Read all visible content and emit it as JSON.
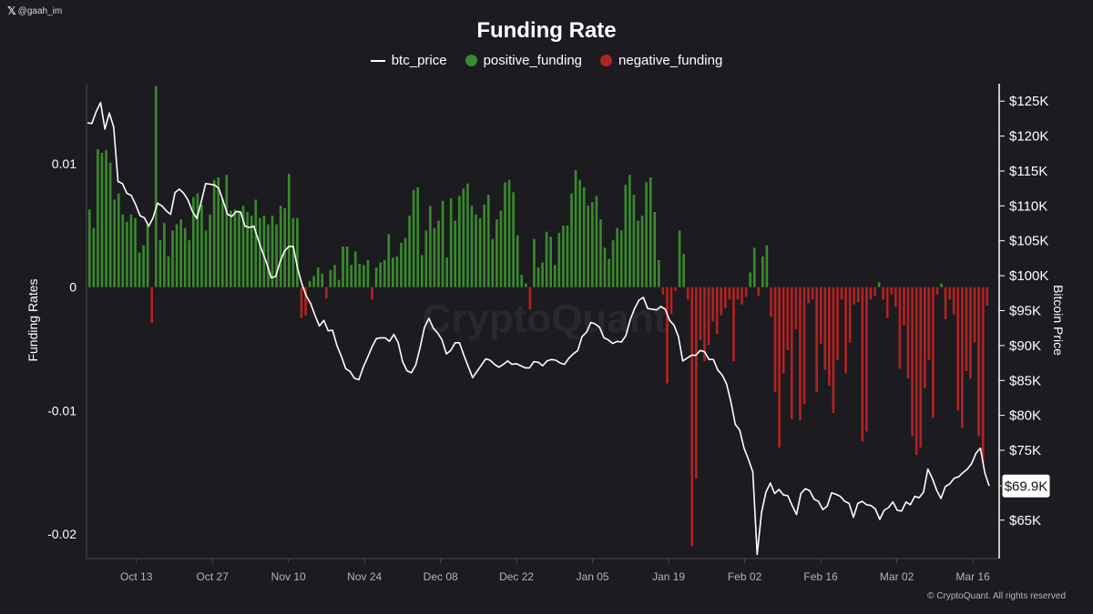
{
  "handle": {
    "logo": "𝕏",
    "text": "@gaah_im"
  },
  "copyright": "© CryptoQuant. All rights reserved",
  "colors": {
    "positive": "#3a8a2c",
    "negative": "#b22222",
    "price": "#ffffff",
    "background": "#1b1b20"
  },
  "chart_data": {
    "type": "bar+line",
    "title": "Funding Rate",
    "legend": [
      "btc_price",
      "positive_funding",
      "negative_funding"
    ],
    "ylabel_left": "Funding Rates",
    "ylabel_right": "Bitcoin Price",
    "watermark": "CryptoQuant",
    "ylim_left": [
      -0.022,
      0.0165
    ],
    "yticks_left": [
      {
        "v": 0.01,
        "label": "0.01"
      },
      {
        "v": 0,
        "label": "0"
      },
      {
        "v": -0.01,
        "label": "-0.01"
      },
      {
        "v": -0.02,
        "label": "-0.02"
      }
    ],
    "ylim_right": [
      59500,
      127500
    ],
    "yticks_right": [
      {
        "v": 125000,
        "label": "$125K"
      },
      {
        "v": 120000,
        "label": "$120K"
      },
      {
        "v": 115000,
        "label": "$115K"
      },
      {
        "v": 110000,
        "label": "$110K"
      },
      {
        "v": 105000,
        "label": "$105K"
      },
      {
        "v": 100000,
        "label": "$100K"
      },
      {
        "v": 95000,
        "label": "$95K"
      },
      {
        "v": 90000,
        "label": "$90K"
      },
      {
        "v": 85000,
        "label": "$85K"
      },
      {
        "v": 80000,
        "label": "$80K"
      },
      {
        "v": 75000,
        "label": "$75K"
      },
      {
        "v": 65000,
        "label": "$65K"
      }
    ],
    "last_price_label": "$69.9K",
    "last_price": 69900,
    "x_range": [
      0,
      166
    ],
    "x_ticks": [
      {
        "i": 9,
        "label": "Oct 13"
      },
      {
        "i": 23,
        "label": "Oct 27"
      },
      {
        "i": 37,
        "label": "Nov 10"
      },
      {
        "i": 51,
        "label": "Nov 24"
      },
      {
        "i": 65,
        "label": "Dec 08"
      },
      {
        "i": 79,
        "label": "Dec 22"
      },
      {
        "i": 93,
        "label": "Jan 05"
      },
      {
        "i": 107,
        "label": "Jan 19"
      },
      {
        "i": 121,
        "label": "Feb 02"
      },
      {
        "i": 135,
        "label": "Feb 16"
      },
      {
        "i": 149,
        "label": "Mar 02"
      },
      {
        "i": 163,
        "label": "Mar 16"
      }
    ],
    "funding": [
      0.0063,
      0.0048,
      0.0112,
      0.0109,
      0.0111,
      0.0101,
      0.0071,
      0.0076,
      0.0059,
      0.0053,
      0.0059,
      0.0056,
      0.0028,
      0.0034,
      0.0051,
      -0.0029,
      0.0163,
      0.0038,
      0.0052,
      0.0025,
      0.0046,
      0.0051,
      0.0055,
      0.0048,
      0.0038,
      0.0073,
      0.0076,
      0.0067,
      0.0046,
      0.0059,
      0.0087,
      0.0089,
      0.0072,
      0.0091,
      0.0062,
      0.0063,
      0.0062,
      0.0066,
      0.0061,
      0.0058,
      0.0071,
      0.0056,
      0.0058,
      0.0051,
      0.0058,
      0.0051,
      0.0066,
      0.0064,
      0.0092,
      0.0056,
      0.0056,
      -0.0025,
      -0.0023,
      0.0005,
      0.0009,
      0.0016,
      0.0011,
      -0.0009,
      0.0014,
      0.0018,
      0.0006,
      0.0033,
      0.0033,
      0.0018,
      0.0029,
      0.0019,
      0.0018,
      0.0022,
      -0.001,
      0.0016,
      0.002,
      0.0022,
      0.0043,
      0.0024,
      0.0025,
      0.0036,
      0.004,
      0.0058,
      0.0079,
      0.0081,
      0.0026,
      0.0046,
      0.0066,
      0.0048,
      0.0054,
      0.007,
      0.0024,
      0.0072,
      0.0054,
      0.0074,
      0.008,
      0.0084,
      0.0066,
      0.0059,
      0.0056,
      0.0067,
      0.0075,
      0.0039,
      0.0055,
      0.0062,
      0.0085,
      0.0087,
      0.0077,
      0.0042,
      0.001,
      0.0003,
      -0.0018,
      0.0039,
      0.0016,
      0.002,
      0.0045,
      0.0041,
      0.0018,
      0.0044,
      0.005,
      0.005,
      0.0076,
      0.0095,
      0.0087,
      0.0081,
      0.0066,
      0.0069,
      0.0074,
      0.0055,
      0.0032,
      0.0023,
      0.0038,
      0.0048,
      0.0046,
      0.0083,
      0.0091,
      0.0075,
      0.0054,
      0.0058,
      0.0085,
      0.0089,
      0.0061,
      0.0022,
      -0.0006,
      -0.0078,
      -0.0022,
      -0.0003,
      0.0046,
      0.0027,
      -0.001,
      -0.021,
      -0.0155,
      -0.0043,
      -0.006,
      -0.0047,
      -0.0028,
      -0.0038,
      -0.0023,
      -0.0017,
      -0.001,
      -0.006,
      -0.001,
      -0.0014,
      -0.0008,
      0.0012,
      0.0032,
      -0.0007,
      0.0025,
      0.0034,
      -0.0024,
      -0.0085,
      -0.013,
      -0.007,
      -0.0051,
      -0.0107,
      -0.0034,
      -0.0108,
      -0.0095,
      -0.0013,
      -0.001,
      -0.0085,
      -0.0046,
      -0.0067,
      -0.008,
      -0.0102,
      -0.0059,
      -0.001,
      -0.007,
      -0.0045,
      -0.0014,
      -0.0012,
      -0.0125,
      -0.0117,
      -0.001,
      -0.0007,
      0.0004,
      -0.001,
      -0.0025,
      -0.0006,
      -0.0016,
      -0.0066,
      -0.0031,
      -0.0074,
      -0.0121,
      -0.0136,
      -0.013,
      -0.0082,
      -0.0059,
      -0.0106,
      -0.0006,
      0.0003,
      -0.0026,
      -0.001,
      -0.0022,
      -0.01,
      -0.0114,
      -0.0068,
      -0.0074,
      -0.0045,
      -0.0121,
      -0.0142,
      -0.0015
    ],
    "btc_price": [
      121900,
      121800,
      123500,
      124800,
      121000,
      123300,
      121300,
      113500,
      113200,
      111800,
      111500,
      110200,
      108600,
      108300,
      107100,
      108300,
      110400,
      110000,
      109300,
      108800,
      111900,
      112400,
      111800,
      110800,
      109200,
      108200,
      110600,
      113200,
      113100,
      113000,
      112500,
      110700,
      108800,
      108500,
      109200,
      109100,
      107100,
      106900,
      107100,
      105200,
      103400,
      101700,
      99700,
      99900,
      102000,
      103500,
      104200,
      104200,
      101100,
      98800,
      97100,
      96000,
      94300,
      92800,
      93600,
      92100,
      92200,
      90000,
      88500,
      86700,
      86300,
      85300,
      85100,
      86900,
      88300,
      89800,
      91000,
      91100,
      91100,
      90600,
      91600,
      90400,
      87700,
      86400,
      86100,
      87200,
      89700,
      92600,
      93900,
      92500,
      91800,
      90800,
      88800,
      89300,
      90400,
      90400,
      88600,
      87000,
      85400,
      86300,
      87200,
      88100,
      87900,
      87300,
      86900,
      87300,
      87800,
      87300,
      87400,
      87100,
      86800,
      86800,
      87700,
      87600,
      87100,
      87800,
      88000,
      87900,
      87500,
      87300,
      88200,
      88800,
      89300,
      91300,
      91900,
      93300,
      93100,
      92600,
      91100,
      90800,
      90300,
      90600,
      90500,
      91400,
      93700,
      95300,
      96500,
      96900,
      95300,
      95200,
      95100,
      95600,
      95200,
      93600,
      92900,
      91300,
      87800,
      88200,
      88600,
      88600,
      89300,
      89100,
      88000,
      88000,
      86500,
      85800,
      84500,
      81900,
      78700,
      77900,
      75300,
      73700,
      71900,
      60100,
      66100,
      69000,
      70300,
      68800,
      69400,
      68600,
      68500,
      67100,
      65800,
      68800,
      69500,
      69200,
      68000,
      67700,
      66500,
      67000,
      68900,
      68700,
      68400,
      67700,
      67400,
      65400,
      67400,
      67700,
      67200,
      67100,
      66600,
      65100,
      66400,
      66800,
      67600,
      66400,
      66300,
      67600,
      67200,
      68400,
      68200,
      69000,
      72300,
      71000,
      69300,
      68100,
      69800,
      70200,
      71000,
      71200,
      71800,
      72300,
      73100,
      74600,
      75300,
      71800,
      69900
    ]
  }
}
